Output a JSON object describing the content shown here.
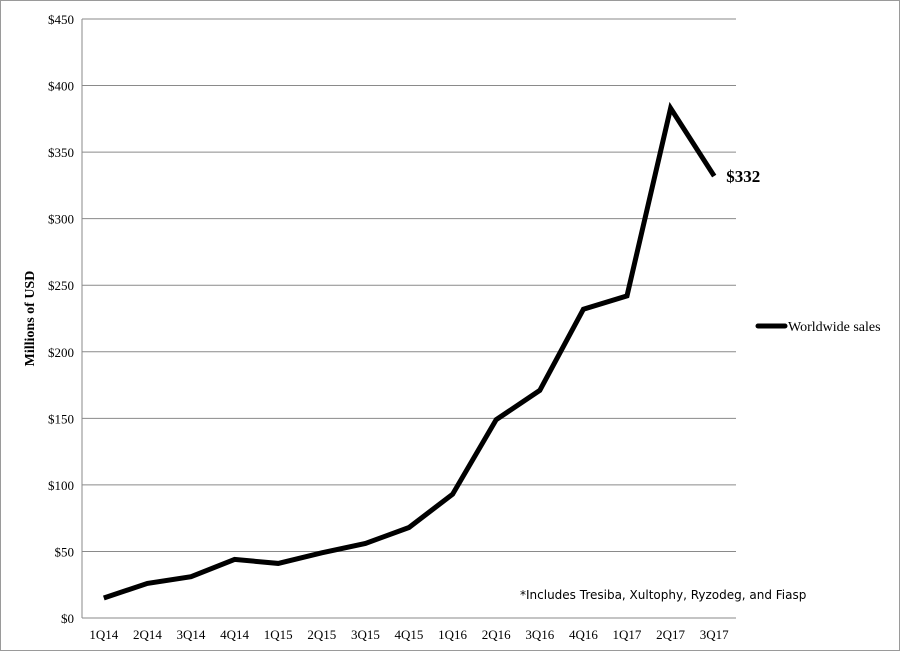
{
  "chart_data": {
    "type": "line",
    "title": "",
    "xlabel": "",
    "ylabel": "Millions of USD",
    "ylim": [
      0,
      450
    ],
    "y_ticks": [
      0,
      50,
      100,
      150,
      200,
      250,
      300,
      350,
      400,
      450
    ],
    "y_tick_labels": [
      "$0",
      "$50",
      "$100",
      "$150",
      "$200",
      "$250",
      "$300",
      "$350",
      "$400",
      "$450"
    ],
    "grid": true,
    "legend_position": "right",
    "categories": [
      "1Q14",
      "2Q14",
      "3Q14",
      "4Q14",
      "1Q15",
      "2Q15",
      "3Q15",
      "4Q15",
      "1Q16",
      "2Q16",
      "3Q16",
      "4Q16",
      "1Q17",
      "2Q17",
      "3Q17"
    ],
    "series": [
      {
        "name": "Worldwide sales",
        "color": "#000000",
        "values": [
          15,
          26,
          31,
          44,
          41,
          49,
          56,
          68,
          93,
          149,
          171,
          232,
          242,
          383,
          332
        ]
      }
    ],
    "annotations": [
      {
        "text": "$332",
        "category": "3Q17"
      },
      {
        "text": "*Includes Tresiba, Xultophy, Ryzodeg, and Fiasp"
      }
    ]
  }
}
